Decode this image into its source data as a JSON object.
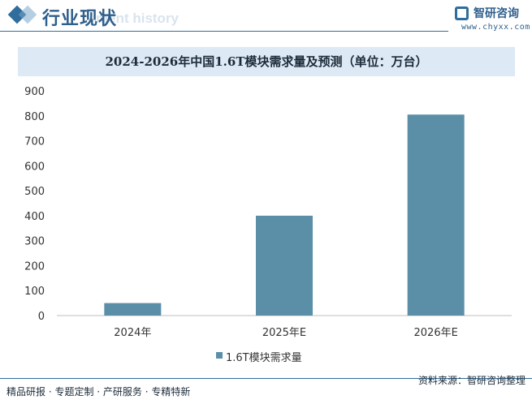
{
  "header": {
    "section_title": "行业现状",
    "section_subtitle": "ment history",
    "logo_name": "智研咨询",
    "logo_url": "www.chyxx.com"
  },
  "footer": {
    "left_text": "精品研报 · 专题定制 · 产研服务 · 专精特新",
    "source_text": "资料来源：智研咨询整理"
  },
  "colors": {
    "bar": "#5b8fa8",
    "accent": "#2f6e9c",
    "title_band": "#dde9f4"
  },
  "chart_data": {
    "type": "bar",
    "title": "2024-2026年中国1.6T模块需求量及预测（单位：万台）",
    "categories": [
      "2024年",
      "2025年E",
      "2026年E"
    ],
    "series": [
      {
        "name": "1.6T模块需求量",
        "values": [
          50,
          400,
          805
        ]
      }
    ],
    "ylim": [
      0,
      900
    ],
    "yticks": [
      0,
      100,
      200,
      300,
      400,
      500,
      600,
      700,
      800,
      900
    ],
    "xlabel": "",
    "ylabel": "",
    "grid": false,
    "legend_position": "bottom"
  }
}
